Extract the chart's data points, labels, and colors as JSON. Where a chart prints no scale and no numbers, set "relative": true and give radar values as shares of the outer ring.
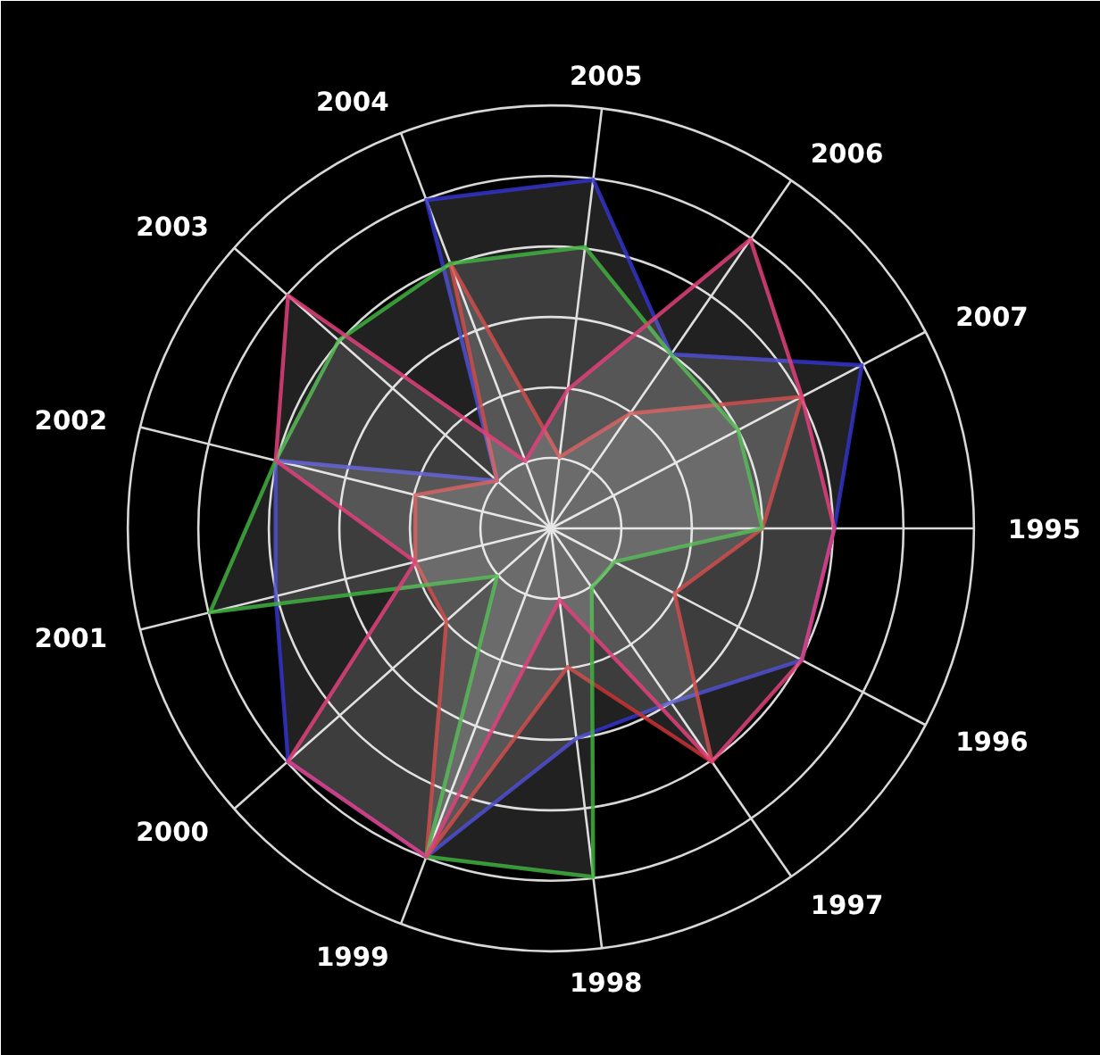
{
  "chart_data": {
    "type": "radar",
    "relative": true,
    "grid": true,
    "categories": [
      "1995",
      "1996",
      "1997",
      "1998",
      "1999",
      "2000",
      "2001",
      "2002",
      "2003",
      "2004",
      "2005",
      "2006",
      "2007"
    ],
    "series": [
      {
        "color": "#3434c8",
        "values": [
          0.67,
          0.67,
          0.5,
          0.5,
          0.83,
          0.83,
          0.67,
          0.67,
          0.17,
          0.83,
          0.83,
          0.5,
          0.83
        ]
      },
      {
        "color": "#c83232",
        "values": [
          0.5,
          0.33,
          0.67,
          0.33,
          0.83,
          0.33,
          0.33,
          0.33,
          0.17,
          0.67,
          0.17,
          0.33,
          0.67
        ]
      },
      {
        "color": "#40b040",
        "values": [
          0.5,
          0.17,
          0.17,
          0.83,
          0.83,
          0.17,
          0.83,
          0.67,
          0.67,
          0.67,
          0.67,
          0.5,
          0.5
        ]
      },
      {
        "color": "#e0407a",
        "values": [
          0.67,
          0.67,
          0.67,
          0.17,
          0.83,
          0.83,
          0.33,
          0.67,
          0.83,
          0.17,
          0.33,
          0.83,
          0.67
        ]
      }
    ]
  }
}
